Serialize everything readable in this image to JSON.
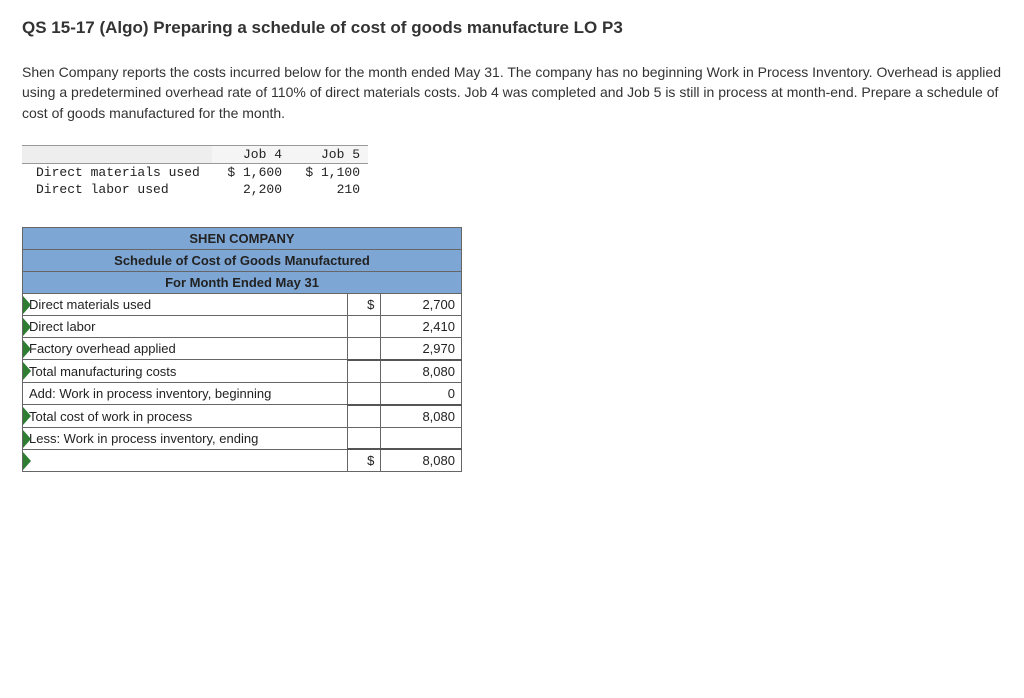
{
  "title": "QS 15-17 (Algo) Preparing a schedule of cost of goods manufacture LO P3",
  "prompt": "Shen Company reports the costs incurred below for the month ended May 31. The company has no beginning Work in Process Inventory. Overhead is applied using a predetermined overhead rate of 110% of direct materials costs. Job 4 was completed and Job 5 is still in process at month-end. Prepare a schedule of cost of goods manufactured for the month.",
  "cost_table": {
    "col_headers": [
      "Job 4",
      "Job 5"
    ],
    "rows": [
      {
        "label": "Direct materials used",
        "job4": "$ 1,600",
        "job5": "$ 1,100"
      },
      {
        "label": "Direct labor used",
        "job4": "2,200",
        "job5": "210"
      }
    ],
    "header_bg": "#f5f5f5",
    "header_first_bg": "#eeeeee",
    "border_color": "#999999",
    "font_family": "Courier New"
  },
  "schedule": {
    "company": "SHEN COMPANY",
    "title": "Schedule of Cost of Goods Manufactured",
    "period": "For Month Ended May 31",
    "header_bg": "#7ea6d4",
    "border_color": "#666666",
    "tick_color": "#2e7d32",
    "columns": {
      "label_width": 290,
      "currency_width": 30,
      "value_width": 72
    },
    "rows": [
      {
        "label": "Direct materials used",
        "currency": "$",
        "value": "2,700",
        "tick": true,
        "topline": false
      },
      {
        "label": "Direct labor",
        "currency": "",
        "value": "2,410",
        "tick": true,
        "topline": false
      },
      {
        "label": "Factory overhead applied",
        "currency": "",
        "value": "2,970",
        "tick": true,
        "topline": false
      },
      {
        "label": "Total manufacturing costs",
        "currency": "",
        "value": "8,080",
        "tick": true,
        "topline": true
      },
      {
        "label": "Add: Work in process inventory, beginning",
        "currency": "",
        "value": "0",
        "tick": false,
        "topline": false
      },
      {
        "label": "Total cost of work in process",
        "currency": "",
        "value": "8,080",
        "tick": true,
        "topline": true
      },
      {
        "label": "Less: Work in process inventory, ending",
        "currency": "",
        "value": "",
        "tick": true,
        "topline": false
      },
      {
        "label": "",
        "currency": "$",
        "value": "8,080",
        "tick": true,
        "topline": true
      }
    ]
  }
}
